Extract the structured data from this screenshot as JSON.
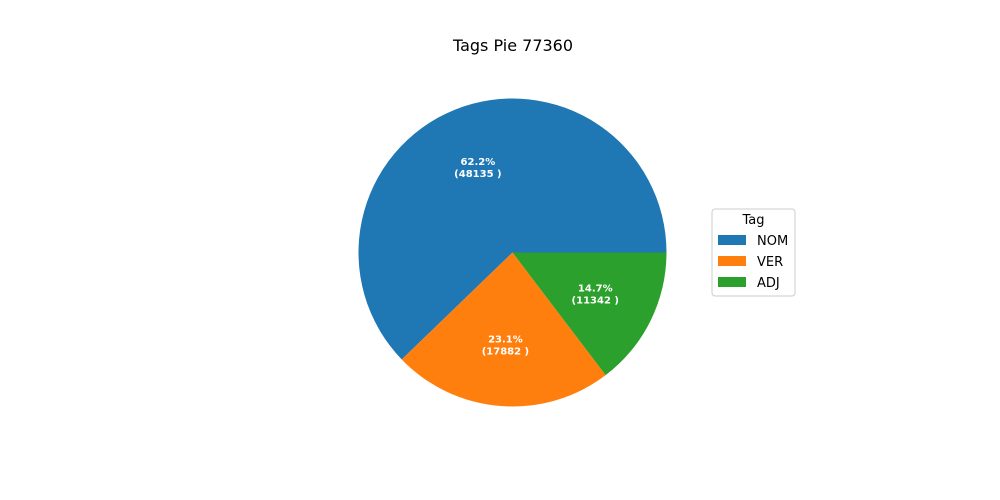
{
  "chart_data": {
    "type": "pie",
    "title": "Tags Pie 77360",
    "legend_title": "Tag",
    "legend_position": "right",
    "slices": [
      {
        "label": "NOM",
        "value": 48135,
        "percent_text": "62.2%",
        "count_text": "(48135 )",
        "color": "#1f77b4"
      },
      {
        "label": "VER",
        "value": 17882,
        "percent_text": "23.1%",
        "count_text": "(17882 )",
        "color": "#ff7f0e"
      },
      {
        "label": "ADJ",
        "value": 11342,
        "percent_text": "14.7%",
        "count_text": "(11342 )",
        "color": "#2ca02c"
      }
    ]
  }
}
